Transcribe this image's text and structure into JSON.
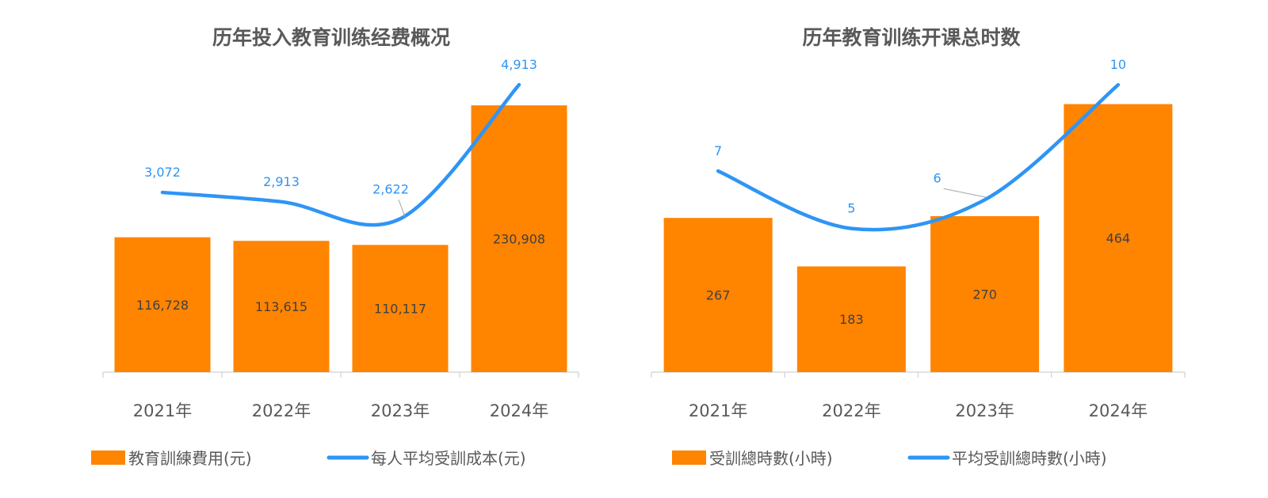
{
  "colors": {
    "bar": "#ff8400",
    "line": "#2e95f5",
    "axis": "#d9d9d9",
    "text": "#595959"
  },
  "chart_data": [
    {
      "type": "bar+line",
      "title": "历年投入教育训练经费概况",
      "categories": [
        "2021年",
        "2022年",
        "2023年",
        "2024年"
      ],
      "series": [
        {
          "name": "教育訓練費用(元)",
          "type": "bar",
          "axis": "primary",
          "values": [
            116728,
            113615,
            110117,
            230908
          ],
          "labels": [
            "116,728",
            "113,615",
            "110,117",
            "230,908"
          ]
        },
        {
          "name": "每人平均受訓成本(元)",
          "type": "line",
          "axis": "secondary",
          "values": [
            3072,
            2913,
            2622,
            4913
          ],
          "labels": [
            "3,072",
            "2,913",
            "2,622",
            "4,913"
          ]
        }
      ],
      "ylim": [
        0,
        281000
      ],
      "y2lim": [
        0,
        5550
      ],
      "legend": "bottom",
      "grid": false
    },
    {
      "type": "bar+line",
      "title": "历年教育训练开课总时数",
      "categories": [
        "2021年",
        "2022年",
        "2023年",
        "2024年"
      ],
      "series": [
        {
          "name": "受訓總時數(小時)",
          "type": "bar",
          "axis": "primary",
          "values": [
            267,
            183,
            270,
            464
          ],
          "labels": [
            "267",
            "183",
            "270",
            "464"
          ]
        },
        {
          "name": "平均受訓總時數(小時)",
          "type": "line",
          "axis": "secondary",
          "values": [
            7,
            5,
            6,
            10
          ],
          "labels": [
            "7",
            "5",
            "6",
            "10"
          ]
        }
      ],
      "ylim": [
        0,
        562
      ],
      "y2lim": [
        0,
        11.3
      ],
      "legend": "bottom",
      "grid": false
    }
  ]
}
